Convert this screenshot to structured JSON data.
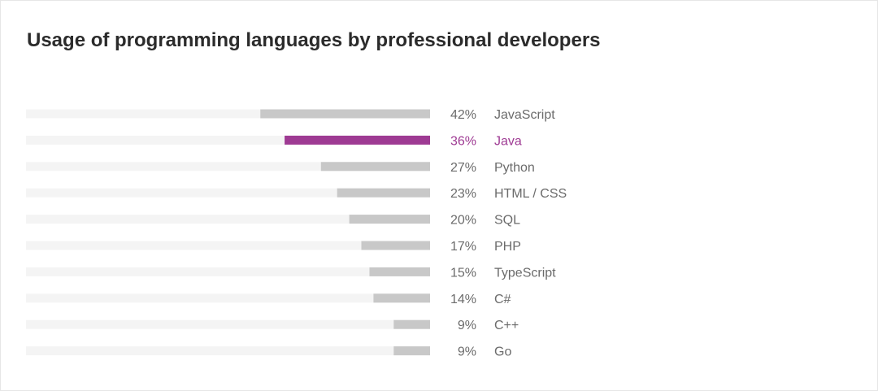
{
  "chart_data": {
    "type": "bar",
    "orientation": "horizontal",
    "title": "Usage of programming languages by professional developers",
    "categories": [
      "JavaScript",
      "Java",
      "Python",
      "HTML / CSS",
      "SQL",
      "PHP",
      "TypeScript",
      "C#",
      "C++",
      "Go"
    ],
    "values": [
      42,
      36,
      27,
      23,
      20,
      17,
      15,
      14,
      9,
      9
    ],
    "value_labels": [
      "42%",
      "36%",
      "27%",
      "23%",
      "20%",
      "17%",
      "15%",
      "14%",
      "9%",
      "9%"
    ],
    "xlim": [
      0,
      100
    ],
    "highlight": "Java",
    "grid": false,
    "colors": {
      "bar": "#c8c8c8",
      "track": "#f4f4f4",
      "highlight": "#9e3a93",
      "text": "#6b6b6b",
      "title": "#2b2b2b"
    }
  }
}
